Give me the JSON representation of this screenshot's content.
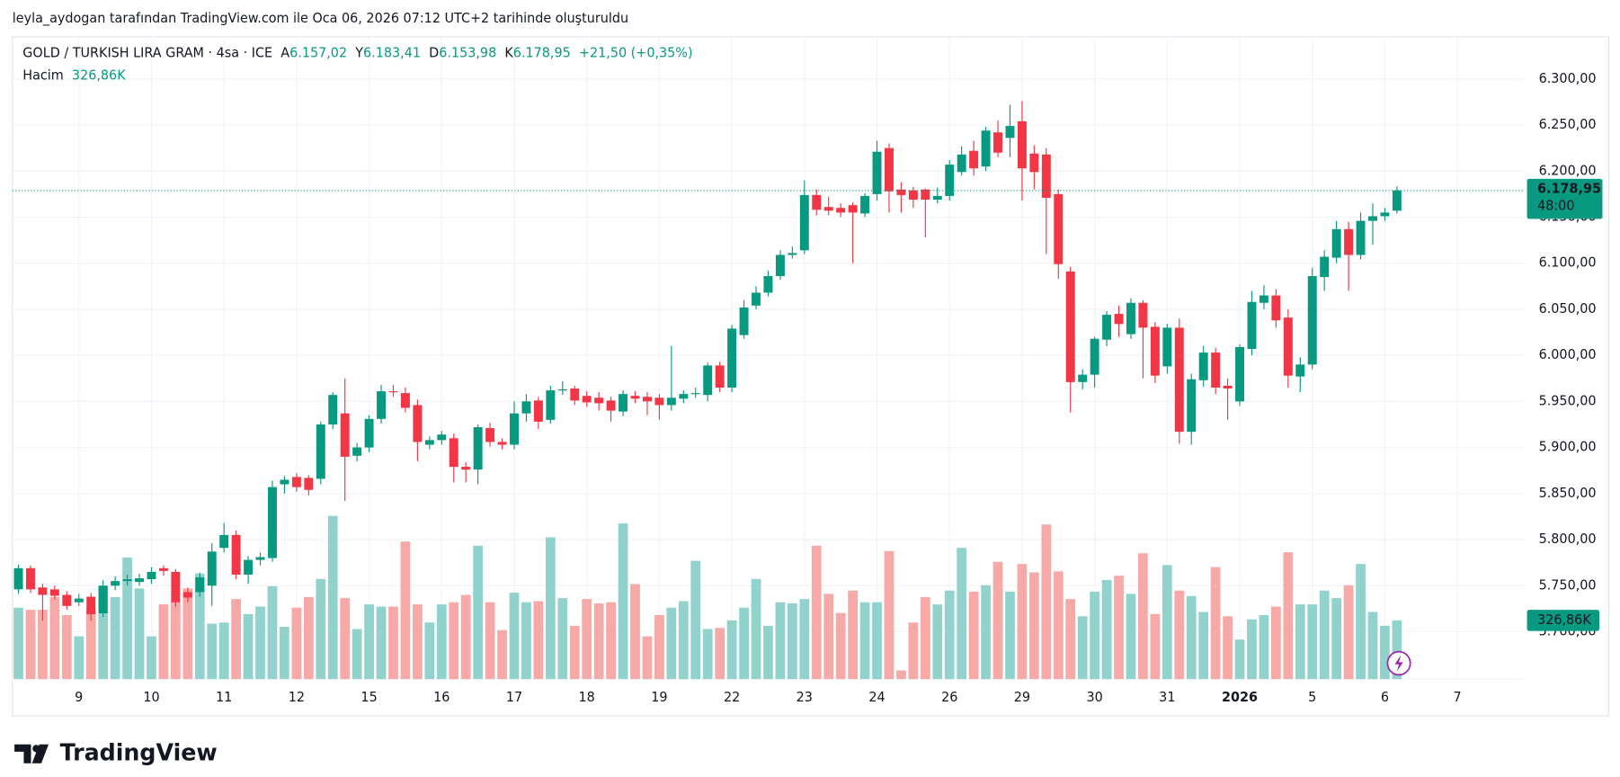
{
  "header": {
    "attribution": "leyla_aydogan tarafından TradingView.com ile Oca 06, 2026 07:12 UTC+2 tarihinde oluşturuldu"
  },
  "legend": {
    "symbol": "GOLD / TURKISH LIRA GRAM · 4sa · ICE",
    "open_label": "A",
    "open": "6.157,02",
    "high_label": "Y",
    "high": "6.183,41",
    "low_label": "D",
    "low": "6.153,98",
    "close_label": "K",
    "close": "6.178,95",
    "change": "+21,50 (+0,35%)",
    "volume_label": "Hacim",
    "volume": "326,86K"
  },
  "price_tag": {
    "price": "6.178,95",
    "countdown": "48:00",
    "volume": "326,86K"
  },
  "logo": "TradingView",
  "chart_data": {
    "type": "candlestick",
    "up_color": "#089981",
    "down_color": "#f23645",
    "up_volume_color": "#92d2cc",
    "down_volume_color": "#f7a9a7",
    "grid": true,
    "xlim": [
      -0.5,
      124.5
    ],
    "xticks": [
      {
        "value": 5,
        "label": "9"
      },
      {
        "value": 11,
        "label": "10"
      },
      {
        "value": 17,
        "label": "11"
      },
      {
        "value": 23,
        "label": "12"
      },
      {
        "value": 29,
        "label": "15"
      },
      {
        "value": 35,
        "label": "16"
      },
      {
        "value": 41,
        "label": "17"
      },
      {
        "value": 47,
        "label": "18"
      },
      {
        "value": 53,
        "label": "19"
      },
      {
        "value": 59,
        "label": "22"
      },
      {
        "value": 65,
        "label": "23"
      },
      {
        "value": 71,
        "label": "24"
      },
      {
        "value": 77,
        "label": "26"
      },
      {
        "value": 83,
        "label": "29"
      },
      {
        "value": 89,
        "label": "30"
      },
      {
        "value": 95,
        "label": "31"
      },
      {
        "value": 101,
        "label": "2026"
      },
      {
        "value": 107,
        "label": "5"
      },
      {
        "value": 113,
        "label": "6"
      },
      {
        "value": 119,
        "label": "7"
      }
    ],
    "ylim": [
      5648.6,
      6345.7
    ],
    "yticks": [
      {
        "value": 5700,
        "label": "5.700,00"
      },
      {
        "value": 5750,
        "label": "5.750,00"
      },
      {
        "value": 5800,
        "label": "5.800,00"
      },
      {
        "value": 5850,
        "label": "5.850,00"
      },
      {
        "value": 5900,
        "label": "5.900,00"
      },
      {
        "value": 5950,
        "label": "5.950,00"
      },
      {
        "value": 6000,
        "label": "6.000,00"
      },
      {
        "value": 6050,
        "label": "6.050,00"
      },
      {
        "value": 6100,
        "label": "6.100,00"
      },
      {
        "value": 6150,
        "label": "6.150,00"
      },
      {
        "value": 6200,
        "label": "6.200,00"
      },
      {
        "value": 6250,
        "label": "6.250,00"
      },
      {
        "value": 6300,
        "label": "6.300,00"
      }
    ],
    "open": [
      5746,
      5769,
      5748,
      5746,
      5740,
      5732,
      5738,
      5720,
      5750,
      5755,
      5754,
      5757,
      5769,
      5765,
      5743,
      5743,
      5750,
      5791,
      5805,
      5762,
      5778,
      5780,
      5860,
      5868,
      5867,
      5866,
      5925,
      5937,
      5891,
      5900,
      5931,
      5961,
      5959,
      5946,
      5903,
      5908,
      5910,
      5879,
      5876,
      5921,
      5906,
      5903,
      5937,
      5951,
      5930,
      5962,
      5964,
      5956,
      5954,
      5951,
      5939,
      5956,
      5955,
      5954,
      5946,
      5953,
      5958,
      5957,
      5989,
      5965,
      6022,
      6054,
      6068,
      6086,
      6109,
      6114,
      6174,
      6161,
      6160,
      6163,
      6154,
      6175,
      6225,
      6180,
      6179,
      6180,
      6169,
      6173,
      6199,
      6222,
      6205,
      6242,
      6236,
      6254,
      6219,
      6218,
      6175,
      6091,
      5971,
      5979,
      6017,
      6045,
      6023,
      6057,
      6031,
      5988,
      6030,
      5917,
      5973,
      6003,
      5967,
      5950,
      6007,
      6057,
      6065,
      6041,
      5977,
      5990,
      6085,
      6106,
      6137,
      6109,
      6146,
      6151,
      6157.02
    ],
    "high": [
      5773,
      5772,
      5752,
      5750,
      5744,
      5741,
      5742,
      5756,
      5760,
      5762,
      5763,
      5770,
      5772,
      5768,
      5748,
      5764,
      5796,
      5818,
      5810,
      5782,
      5786,
      5864,
      5869,
      5872,
      5870,
      5928,
      5960,
      5975,
      5905,
      5935,
      5968,
      5968,
      5965,
      5952,
      5912,
      5918,
      5915,
      5884,
      5925,
      5927,
      5910,
      5950,
      5958,
      5955,
      5967,
      5972,
      5967,
      5961,
      5960,
      5955,
      5962,
      5961,
      5960,
      5958,
      6010,
      5962,
      5965,
      5992,
      5993,
      6033,
      6060,
      6075,
      6092,
      6114,
      6118,
      6190,
      6180,
      6172,
      6165,
      6166,
      6176,
      6233,
      6230,
      6188,
      6183,
      6181,
      6182,
      6212,
      6227,
      6233,
      6248,
      6255,
      6272,
      6276,
      6228,
      6225,
      6180,
      6096,
      5985,
      6020,
      6048,
      6054,
      6062,
      6060,
      6036,
      6034,
      6040,
      5980,
      6010,
      6008,
      5975,
      6012,
      6070,
      6076,
      6072,
      6050,
      5998,
      6095,
      6114,
      6146,
      6145,
      6155,
      6165,
      6160,
      6183.41
    ],
    "low": [
      5741,
      5742,
      5712,
      5735,
      5724,
      5728,
      5712,
      5716,
      5745,
      5750,
      5750,
      5752,
      5761,
      5727,
      5732,
      5738,
      5728,
      5786,
      5757,
      5752,
      5772,
      5776,
      5850,
      5852,
      5848,
      5860,
      5920,
      5842,
      5885,
      5895,
      5926,
      5955,
      5938,
      5885,
      5898,
      5903,
      5862,
      5862,
      5860,
      5901,
      5898,
      5898,
      5928,
      5920,
      5926,
      5957,
      5946,
      5944,
      5940,
      5928,
      5934,
      5948,
      5935,
      5930,
      5940,
      5948,
      5954,
      5950,
      5960,
      5960,
      6018,
      6050,
      6064,
      6082,
      6105,
      6110,
      6152,
      6152,
      6150,
      6100,
      6150,
      6168,
      6155,
      6155,
      6160,
      6128,
      6165,
      6168,
      6195,
      6195,
      6200,
      6215,
      6215,
      6168,
      6180,
      6110,
      6083,
      5938,
      5963,
      5965,
      6010,
      6020,
      6018,
      5975,
      5970,
      5980,
      5904,
      5903,
      5966,
      5958,
      5930,
      5945,
      6000,
      6050,
      6030,
      5965,
      5960,
      5985,
      6070,
      6100,
      6070,
      6104,
      6120,
      6146,
      6153.98
    ],
    "close": [
      5769,
      5746,
      5740,
      5739,
      5728,
      5736,
      5719,
      5750,
      5755,
      5757,
      5758,
      5765,
      5766,
      5732,
      5737,
      5759,
      5787,
      5805,
      5762,
      5778,
      5781,
      5857,
      5865,
      5857,
      5854,
      5925,
      5957,
      5890,
      5900,
      5931,
      5961,
      5960,
      5943,
      5906,
      5908,
      5914,
      5879,
      5876,
      5922,
      5906,
      5903,
      5937,
      5950,
      5928,
      5962,
      5963,
      5951,
      5949,
      5948,
      5940,
      5958,
      5953,
      5950,
      5946,
      5954,
      5958,
      5959,
      5989,
      5965,
      6029,
      6052,
      6068,
      6086,
      6109,
      6111,
      6174,
      6158,
      6157,
      6155,
      6155,
      6173,
      6221,
      6178,
      6174,
      6169,
      6169,
      6173,
      6207,
      6218,
      6203,
      6244,
      6220,
      6249,
      6203,
      6199,
      6171,
      6099,
      5971,
      5979,
      6018,
      6044,
      6034,
      6057,
      6030,
      5978,
      6030,
      5917,
      5974,
      6003,
      5965,
      5964,
      6009,
      6058,
      6065,
      6038,
      5978,
      5990,
      6086,
      6107,
      6137,
      6109,
      6146,
      6151,
      6155,
      6178.95
    ],
    "volume": [
      398,
      386,
      386,
      457,
      356,
      238,
      386,
      517,
      457,
      677,
      505,
      238,
      416,
      434,
      505,
      588,
      309,
      315,
      446,
      362,
      404,
      517,
      291,
      398,
      457,
      558,
      909,
      451,
      279,
      416,
      404,
      404,
      766,
      416,
      315,
      416,
      428,
      469,
      743,
      428,
      273,
      481,
      428,
      434,
      790,
      451,
      297,
      446,
      422,
      428,
      867,
      529,
      238,
      356,
      398,
      434,
      659,
      279,
      285,
      327,
      398,
      558,
      297,
      428,
      422,
      446,
      743,
      475,
      368,
      493,
      428,
      428,
      713,
      48,
      315,
      457,
      416,
      493,
      731,
      487,
      523,
      653,
      487,
      641,
      594,
      861,
      600,
      446,
      350,
      487,
      552,
      576,
      475,
      701,
      362,
      635,
      493,
      463,
      374,
      624,
      350,
      220,
      333,
      356,
      404,
      707,
      416,
      416,
      493,
      451,
      523,
      641,
      374,
      297,
      326.86
    ]
  }
}
